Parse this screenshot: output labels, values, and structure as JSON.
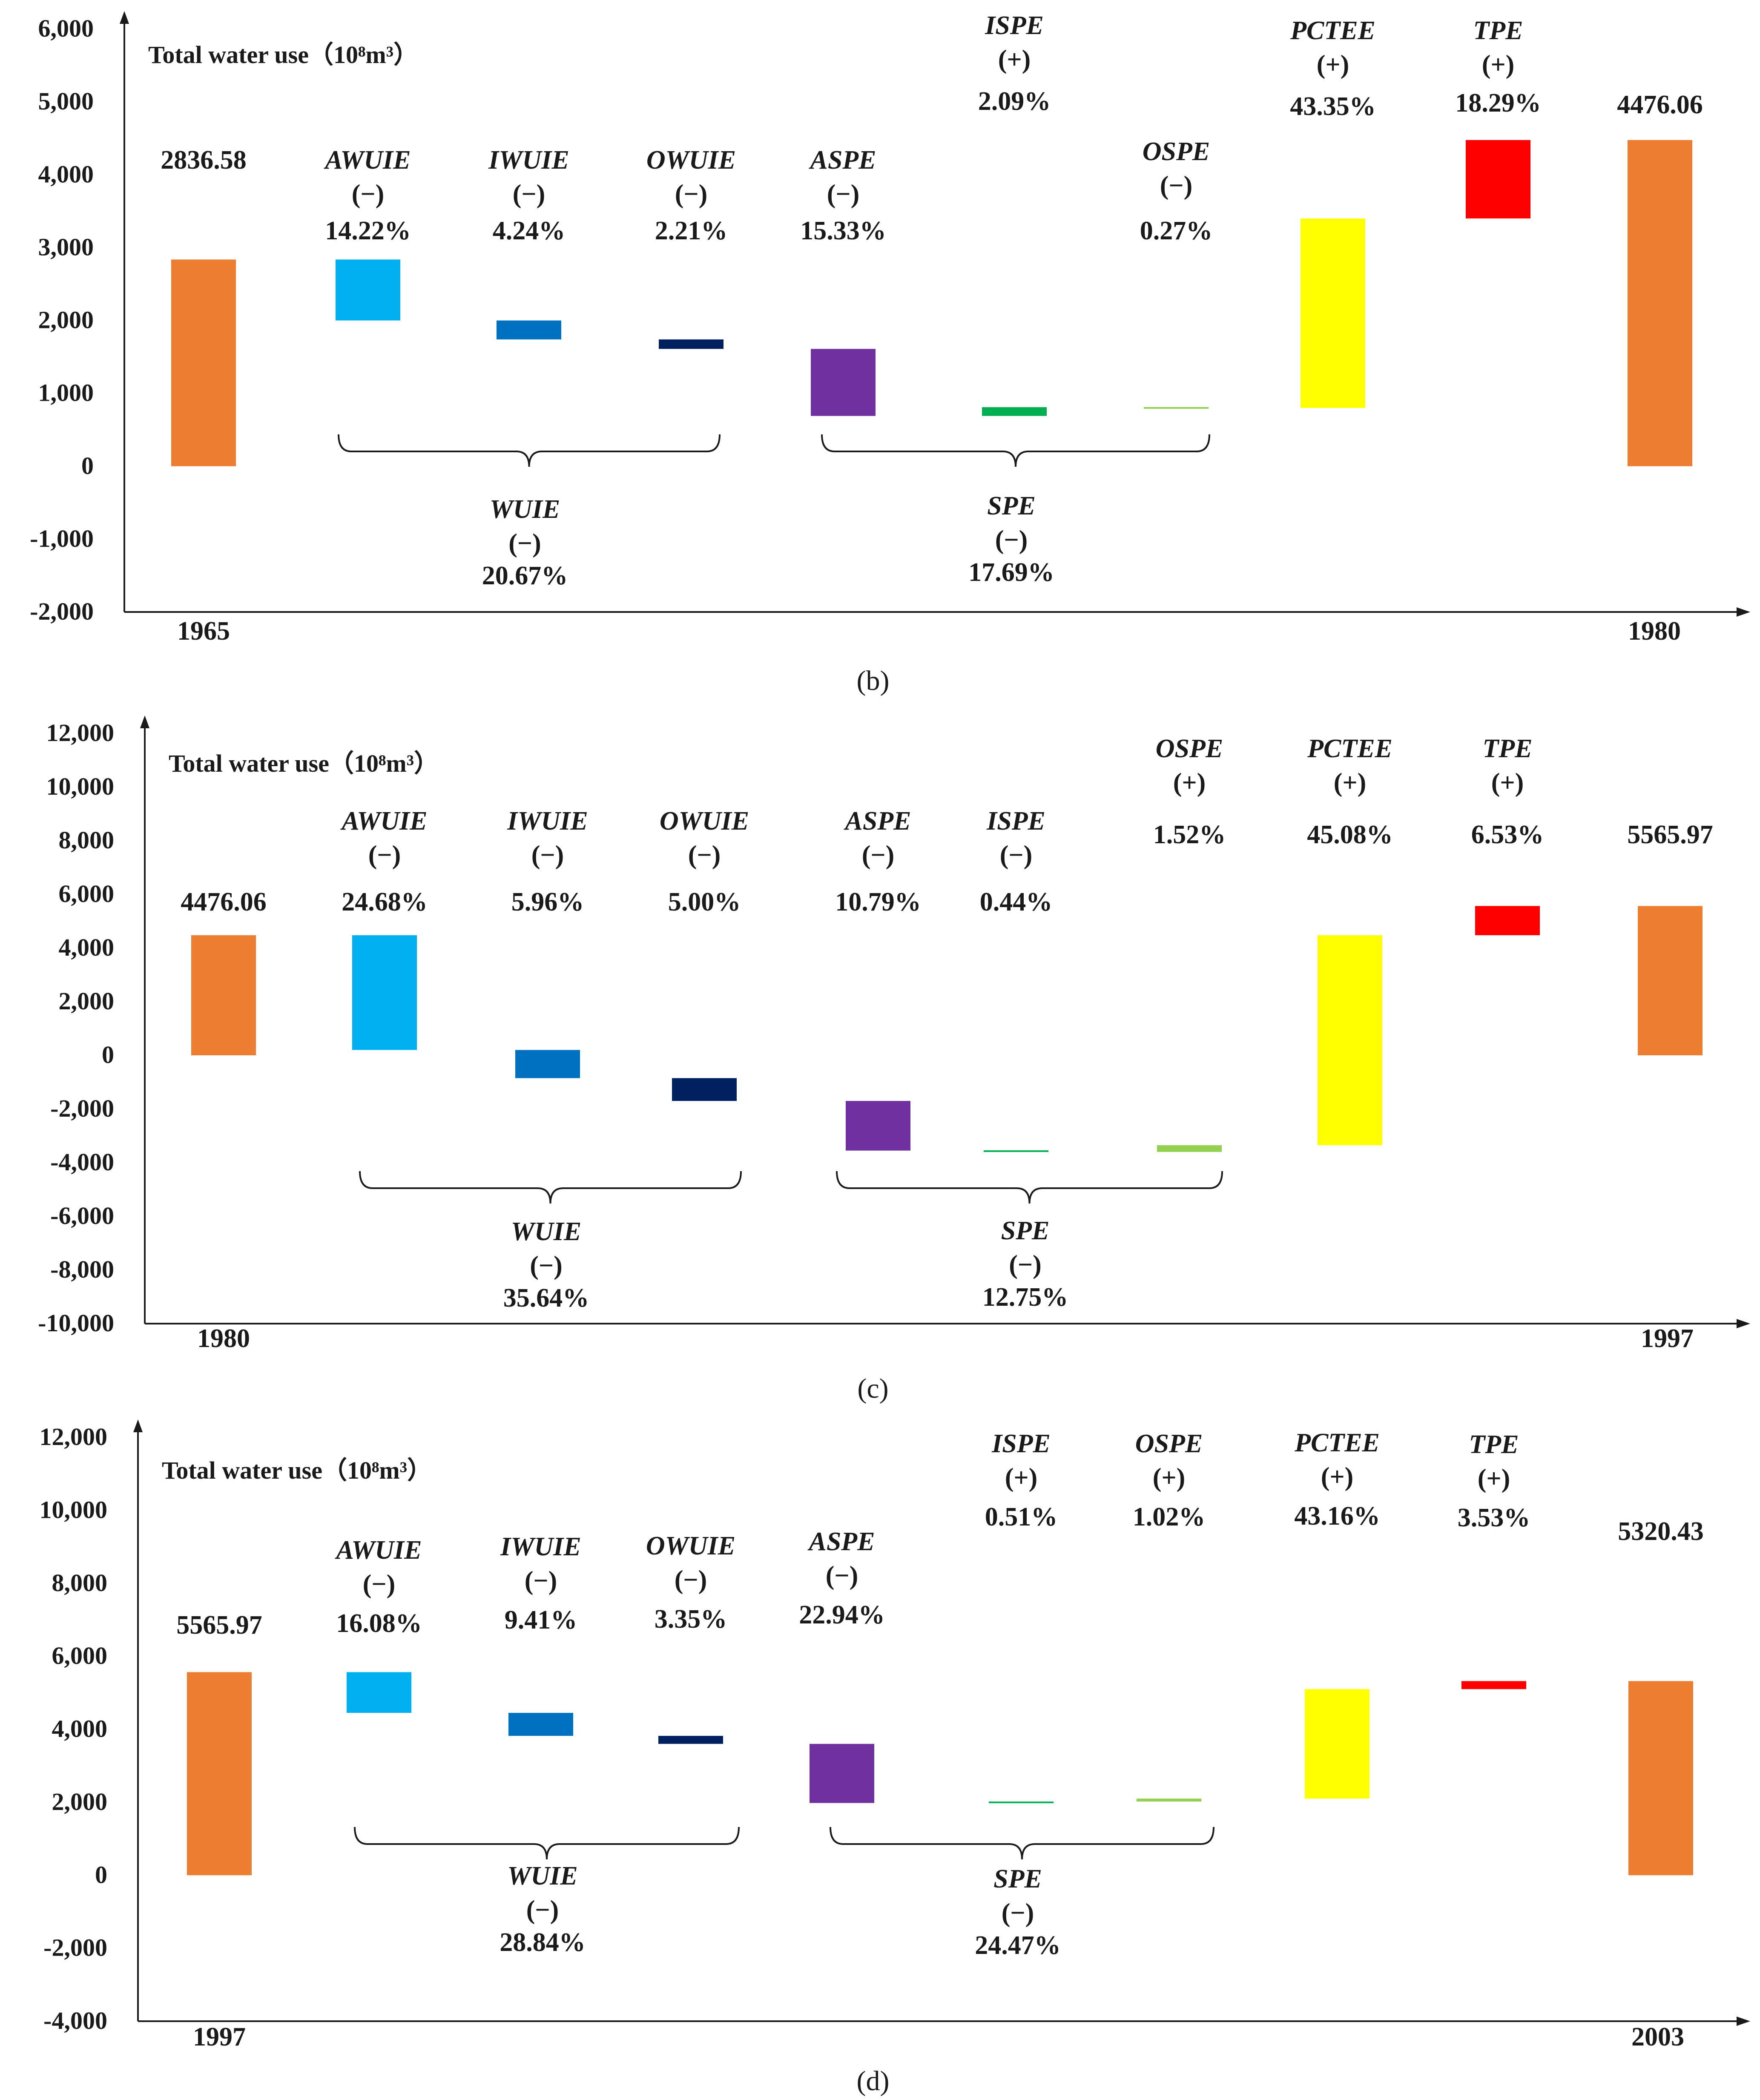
{
  "figure": {
    "panels": [
      {
        "caption": "(b)"
      },
      {
        "caption": "(c)"
      },
      {
        "caption": "(d)"
      }
    ]
  },
  "chart_data": [
    {
      "type": "bar",
      "subtype": "waterfall",
      "title": "Total water use（10⁸m³）",
      "panel": "(b)",
      "ylim": [
        -2000,
        6000
      ],
      "yticks": [
        -2000,
        -1000,
        0,
        1000,
        2000,
        3000,
        4000,
        5000,
        6000
      ],
      "ytick_labels": [
        "-2,000",
        "-1,000",
        "0",
        "1,000",
        "2,000",
        "3,000",
        "4,000",
        "5,000",
        "6,000"
      ],
      "x_start_label": "1965",
      "x_end_label": "1980",
      "bars": [
        {
          "name": "1965",
          "bottom": 0,
          "top": 2836.58,
          "color": "#ED7D31",
          "value_label": "2836.58"
        },
        {
          "name": "AWUIE",
          "sign": "(−)",
          "pct": "14.22%",
          "bottom": 2000,
          "top": 2836.58,
          "color": "#00B0F0"
        },
        {
          "name": "IWUIE",
          "sign": "(−)",
          "pct": "4.24%",
          "bottom": 1740,
          "top": 2000,
          "color": "#0070C0"
        },
        {
          "name": "OWUIE",
          "sign": "(−)",
          "pct": "2.21%",
          "bottom": 1610,
          "top": 1740,
          "color": "#002060"
        },
        {
          "name": "ASPE",
          "sign": "(−)",
          "pct": "15.33%",
          "bottom": 690,
          "top": 1610,
          "color": "#7030A0"
        },
        {
          "name": "ISPE",
          "sign": "(+)",
          "pct": "2.09%",
          "bottom": 690,
          "top": 810,
          "color": "#00B050"
        },
        {
          "name": "OSPE",
          "sign": "(−)",
          "pct": "0.27%",
          "bottom": 795,
          "top": 812,
          "color": "#92D050"
        },
        {
          "name": "PCTEE",
          "sign": "(+)",
          "pct": "43.35%",
          "bottom": 800,
          "top": 3400,
          "color": "#FFFF00"
        },
        {
          "name": "TPE",
          "sign": "(+)",
          "pct": "18.29%",
          "bottom": 3400,
          "top": 4476.06,
          "color": "#FF0000"
        },
        {
          "name": "1980",
          "bottom": 0,
          "top": 4476.06,
          "color": "#ED7D31",
          "value_label": "4476.06"
        }
      ],
      "groups": [
        {
          "name": "WUIE",
          "sign": "(−)",
          "pct": "20.67%"
        },
        {
          "name": "SPE",
          "sign": "(−)",
          "pct": "17.69%"
        }
      ]
    },
    {
      "type": "bar",
      "subtype": "waterfall",
      "title": "Total water use（10⁸m³）",
      "panel": "(c)",
      "ylim": [
        -10000,
        12000
      ],
      "yticks": [
        -10000,
        -8000,
        -6000,
        -4000,
        -2000,
        0,
        2000,
        4000,
        6000,
        8000,
        10000,
        12000
      ],
      "ytick_labels": [
        "-10,000",
        "-8,000",
        "-6,000",
        "-4,000",
        "-2,000",
        "0",
        "2,000",
        "4,000",
        "6,000",
        "8,000",
        "10,000",
        "12,000"
      ],
      "x_start_label": "1980",
      "x_end_label": "1997",
      "bars": [
        {
          "name": "1980",
          "bottom": 0,
          "top": 4476.06,
          "color": "#ED7D31",
          "value_label": "4476.06"
        },
        {
          "name": "AWUIE",
          "sign": "(−)",
          "pct": "24.68%",
          "bottom": 200,
          "top": 4476.06,
          "color": "#00B0F0"
        },
        {
          "name": "IWUIE",
          "sign": "(−)",
          "pct": "5.96%",
          "bottom": -850,
          "top": 200,
          "color": "#0070C0"
        },
        {
          "name": "OWUIE",
          "sign": "(−)",
          "pct": "5.00%",
          "bottom": -1700,
          "top": -850,
          "color": "#002060"
        },
        {
          "name": "ASPE",
          "sign": "(−)",
          "pct": "10.79%",
          "bottom": -3550,
          "top": -1700,
          "color": "#7030A0"
        },
        {
          "name": "ISPE",
          "sign": "(−)",
          "pct": "0.44%",
          "bottom": -3580,
          "top": -3540,
          "color": "#00B050"
        },
        {
          "name": "OSPE",
          "sign": "(+)",
          "pct": "1.52%",
          "bottom": -3600,
          "top": -3350,
          "color": "#92D050"
        },
        {
          "name": "PCTEE",
          "sign": "(+)",
          "pct": "45.08%",
          "bottom": -3350,
          "top": 4476.06,
          "color": "#FFFF00"
        },
        {
          "name": "TPE",
          "sign": "(+)",
          "pct": "6.53%",
          "bottom": 4476.06,
          "top": 5565.97,
          "color": "#FF0000"
        },
        {
          "name": "1997",
          "bottom": 0,
          "top": 5565.97,
          "color": "#ED7D31",
          "value_label": "5565.97"
        }
      ],
      "groups": [
        {
          "name": "WUIE",
          "sign": "(−)",
          "pct": "35.64%"
        },
        {
          "name": "SPE",
          "sign": "(−)",
          "pct": "12.75%"
        }
      ]
    },
    {
      "type": "bar",
      "subtype": "waterfall",
      "title": "Total water use（10⁸m³）",
      "panel": "(d)",
      "ylim": [
        -4000,
        12000
      ],
      "yticks": [
        -4000,
        -2000,
        0,
        2000,
        4000,
        6000,
        8000,
        10000,
        12000
      ],
      "ytick_labels": [
        "-4,000",
        "-2,000",
        "0",
        "2,000",
        "4,000",
        "6,000",
        "8,000",
        "10,000",
        "12,000"
      ],
      "x_start_label": "1997",
      "x_end_label": "2003",
      "bars": [
        {
          "name": "1997",
          "bottom": 0,
          "top": 5565.97,
          "color": "#ED7D31",
          "value_label": "5565.97"
        },
        {
          "name": "AWUIE",
          "sign": "(−)",
          "pct": "16.08%",
          "bottom": 4450,
          "top": 5565.97,
          "color": "#00B0F0"
        },
        {
          "name": "IWUIE",
          "sign": "(−)",
          "pct": "9.41%",
          "bottom": 3820,
          "top": 4450,
          "color": "#0070C0"
        },
        {
          "name": "OWUIE",
          "sign": "(−)",
          "pct": "3.35%",
          "bottom": 3600,
          "top": 3820,
          "color": "#002060"
        },
        {
          "name": "ASPE",
          "sign": "(−)",
          "pct": "22.94%",
          "bottom": 1980,
          "top": 3600,
          "color": "#7030A0"
        },
        {
          "name": "ISPE",
          "sign": "(+)",
          "pct": "0.51%",
          "bottom": 1980,
          "top": 2020,
          "color": "#00B050"
        },
        {
          "name": "OSPE",
          "sign": "(+)",
          "pct": "1.02%",
          "bottom": 2020,
          "top": 2100,
          "color": "#92D050"
        },
        {
          "name": "PCTEE",
          "sign": "(+)",
          "pct": "43.16%",
          "bottom": 2100,
          "top": 5100,
          "color": "#FFFF00"
        },
        {
          "name": "TPE",
          "sign": "(+)",
          "pct": "3.53%",
          "bottom": 5100,
          "top": 5320.43,
          "color": "#FF0000"
        },
        {
          "name": "2003",
          "bottom": 0,
          "top": 5320.43,
          "color": "#ED7D31",
          "value_label": "5320.43"
        }
      ],
      "groups": [
        {
          "name": "WUIE",
          "sign": "(−)",
          "pct": "28.84%"
        },
        {
          "name": "SPE",
          "sign": "(−)",
          "pct": "24.47%"
        }
      ]
    }
  ]
}
